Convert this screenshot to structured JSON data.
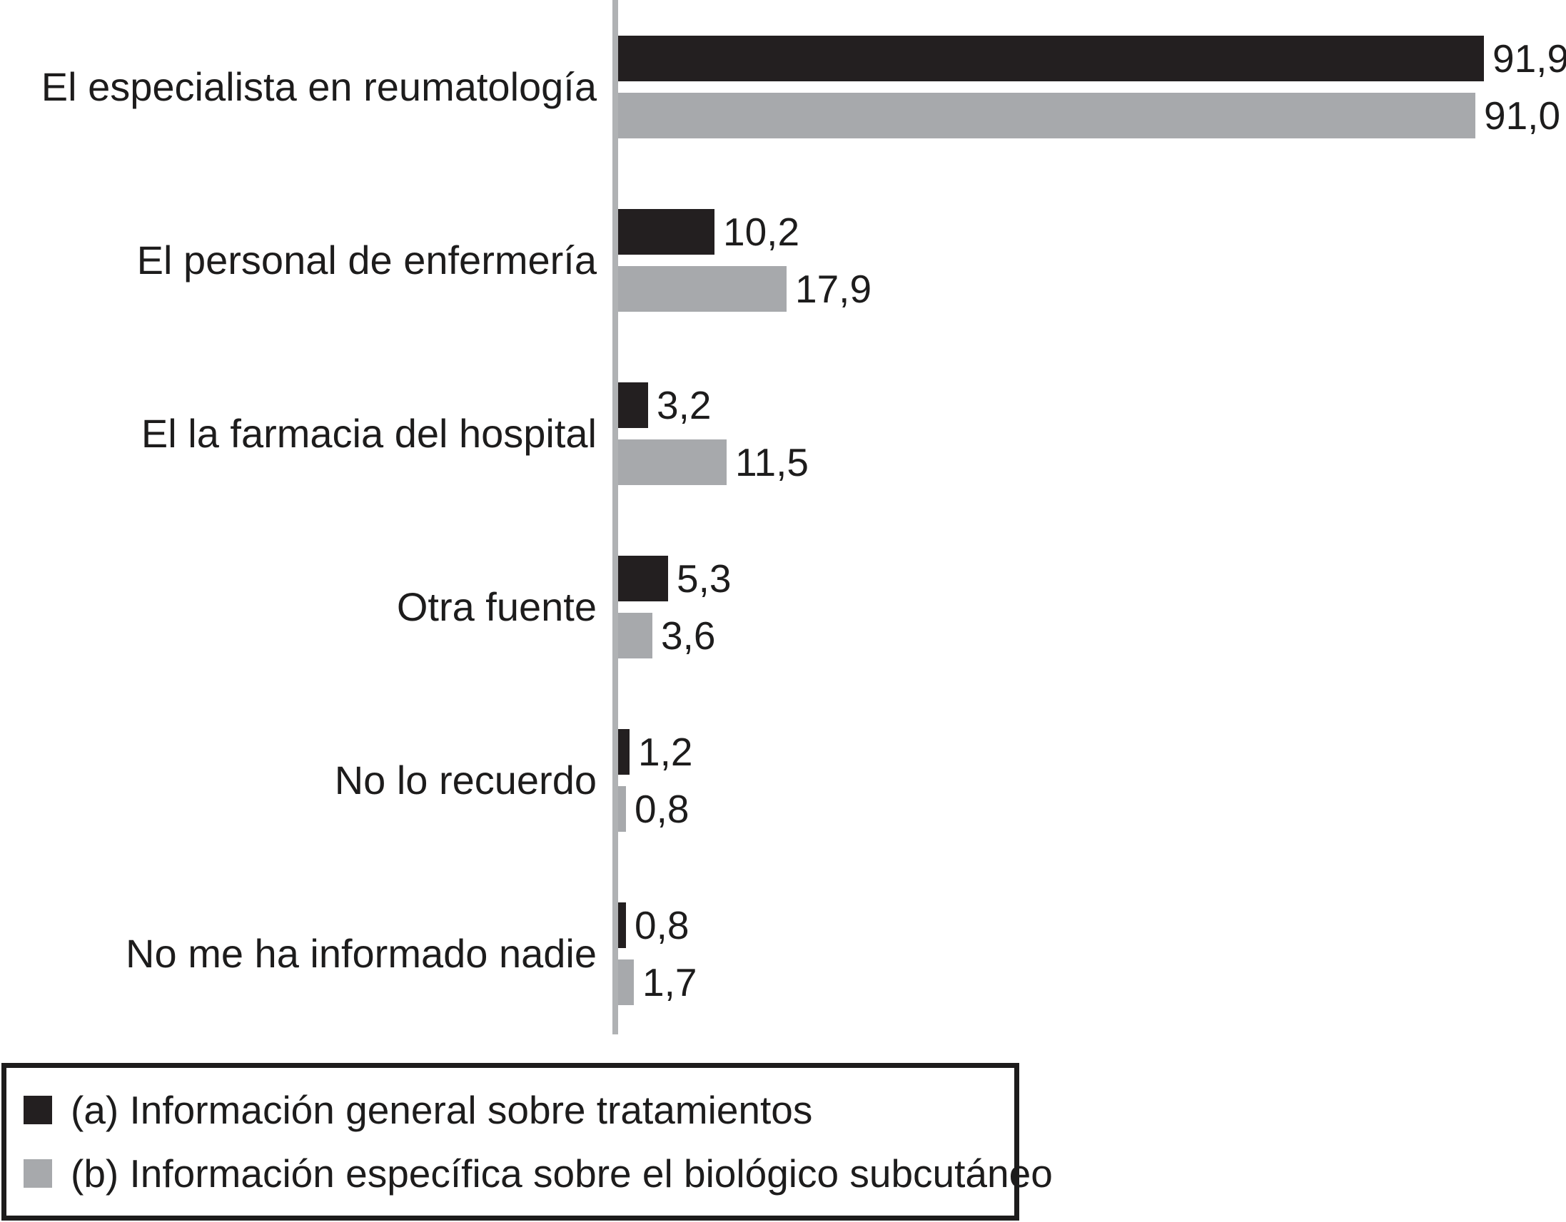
{
  "chart_data": {
    "type": "bar",
    "orientation": "horizontal",
    "title": "",
    "xlabel": "",
    "ylabel": "",
    "xlim": [
      0,
      100
    ],
    "grid": false,
    "legend_position": "bottom-left-box",
    "categories": [
      "El especialista en reumatología",
      "El personal de enfermería",
      "El la farmacia del hospital",
      "Otra fuente",
      "No lo recuerdo",
      "No me ha informado nadie"
    ],
    "series": [
      {
        "name": "(a) Información general sobre tratamientos",
        "color": "#231f20",
        "values": [
          91.9,
          10.2,
          3.2,
          5.3,
          1.2,
          0.8
        ],
        "labels": [
          "91,9",
          "10,2",
          "3,2",
          "5,3",
          "1,2",
          "0,8"
        ]
      },
      {
        "name": "(b) Información específica sobre el biológico subcutáneo",
        "color": "#a7a9ac",
        "values": [
          91.0,
          17.9,
          11.5,
          3.6,
          0.8,
          1.7
        ],
        "labels": [
          "91,0",
          "17,9",
          "11,5",
          "3,6",
          "0,8",
          "1,7"
        ]
      }
    ]
  },
  "legend": {
    "items": [
      {
        "label": "(a) Información general sobre tratamientos",
        "color": "#231f20"
      },
      {
        "label": "(b) Información específica sobre el biológico subcutáneo",
        "color": "#a7a9ac"
      }
    ]
  },
  "colors": {
    "series_a": "#231f20",
    "series_b": "#a7a9ac",
    "axis_line": "#b0b2b4",
    "text": "#1d1c1c"
  }
}
